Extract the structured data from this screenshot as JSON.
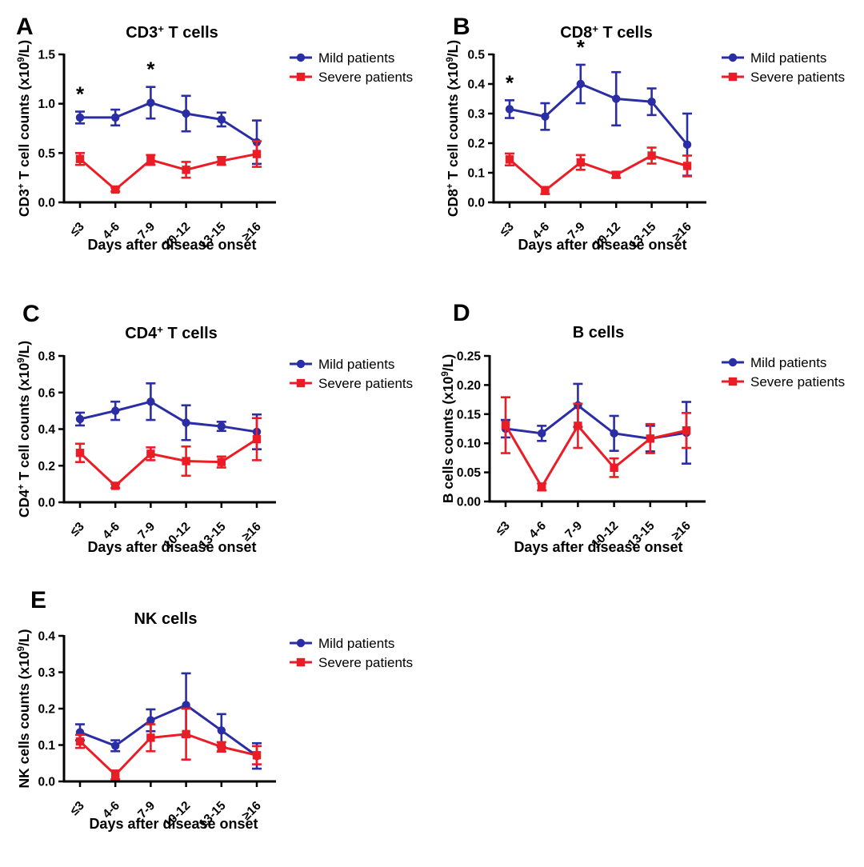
{
  "figure": {
    "legend": {
      "mild": "Mild patients",
      "severe": "Severe patients"
    },
    "xlabel": "Days after disease onset",
    "categories": [
      "≤3",
      "4-6",
      "7-9",
      "10-12",
      "13-15",
      "≥16"
    ],
    "colors": {
      "mild": "#2A2DA4",
      "severe": "#EB1C25",
      "axis": "#000000"
    }
  },
  "chart_data": [
    {
      "id": "A",
      "type": "line",
      "title_parts": [
        {
          "text": "CD3"
        },
        {
          "text": "+",
          "sup": true
        },
        {
          "text": " T cells"
        }
      ],
      "title_plain": "CD3+ T cells",
      "ylabel_parts": [
        {
          "text": "CD3"
        },
        {
          "text": "+",
          "sup": true
        },
        {
          "text": " T cell counts (x10"
        },
        {
          "text": "9",
          "sup": true
        },
        {
          "text": "/L)"
        }
      ],
      "ylabel_plain": "CD3+ T cell counts (x10^9/L)",
      "ylim": [
        0,
        1.5
      ],
      "yticks": [
        "0.0",
        "0.5",
        "1.0",
        "1.5"
      ],
      "series": [
        {
          "name": "Mild patients",
          "values": [
            0.86,
            0.86,
            1.01,
            0.9,
            0.84,
            0.61
          ],
          "errors": [
            0.06,
            0.08,
            0.16,
            0.18,
            0.07,
            0.22
          ]
        },
        {
          "name": "Severe patients",
          "values": [
            0.44,
            0.13,
            0.43,
            0.33,
            0.42,
            0.49
          ],
          "errors": [
            0.06,
            0.02,
            0.05,
            0.08,
            0.04,
            0.13
          ]
        }
      ],
      "annotations": [
        {
          "cat": 0,
          "text": "*"
        },
        {
          "cat": 2,
          "text": "*"
        }
      ]
    },
    {
      "id": "B",
      "type": "line",
      "title_parts": [
        {
          "text": "CD8"
        },
        {
          "text": "+",
          "sup": true
        },
        {
          "text": " T cells"
        }
      ],
      "title_plain": "CD8+ T cells",
      "ylabel_parts": [
        {
          "text": "CD8"
        },
        {
          "text": "+",
          "sup": true
        },
        {
          "text": " T cell counts (x10"
        },
        {
          "text": "9",
          "sup": true
        },
        {
          "text": "/L)"
        }
      ],
      "ylabel_plain": "CD8+ T cell counts (x10^9/L)",
      "ylim": [
        0,
        0.5
      ],
      "yticks": [
        "0.0",
        "0.1",
        "0.2",
        "0.3",
        "0.4",
        "0.5"
      ],
      "series": [
        {
          "name": "Mild patients",
          "values": [
            0.315,
            0.29,
            0.4,
            0.35,
            0.34,
            0.195
          ],
          "errors": [
            0.03,
            0.045,
            0.065,
            0.09,
            0.045,
            0.105
          ]
        },
        {
          "name": "Severe patients",
          "values": [
            0.145,
            0.04,
            0.135,
            0.093,
            0.158,
            0.123
          ],
          "errors": [
            0.02,
            0.012,
            0.025,
            0.01,
            0.027,
            0.035
          ]
        }
      ],
      "annotations": [
        {
          "cat": 0,
          "text": "*"
        },
        {
          "cat": 2,
          "text": "*"
        }
      ]
    },
    {
      "id": "C",
      "type": "line",
      "title_parts": [
        {
          "text": "CD4"
        },
        {
          "text": "+",
          "sup": true
        },
        {
          "text": " T cells"
        }
      ],
      "title_plain": "CD4+ T cells",
      "ylabel_parts": [
        {
          "text": "CD4"
        },
        {
          "text": "+",
          "sup": true
        },
        {
          "text": " T cell counts (x10"
        },
        {
          "text": "9",
          "sup": true
        },
        {
          "text": "/L)"
        }
      ],
      "ylabel_plain": "CD4+ T cell counts (x10^9/L)",
      "ylim": [
        0,
        0.8
      ],
      "yticks": [
        "0.0",
        "0.2",
        "0.4",
        "0.6",
        "0.8"
      ],
      "series": [
        {
          "name": "Mild patients",
          "values": [
            0.455,
            0.5,
            0.55,
            0.435,
            0.415,
            0.385
          ],
          "errors": [
            0.035,
            0.05,
            0.1,
            0.095,
            0.025,
            0.095
          ]
        },
        {
          "name": "Severe patients",
          "values": [
            0.27,
            0.09,
            0.265,
            0.225,
            0.22,
            0.345
          ],
          "errors": [
            0.05,
            0.012,
            0.035,
            0.08,
            0.03,
            0.115
          ]
        }
      ],
      "annotations": []
    },
    {
      "id": "D",
      "type": "line",
      "title_parts": [
        {
          "text": "B cells"
        }
      ],
      "title_plain": "B cells",
      "ylabel_parts": [
        {
          "text": "B cells counts (x10"
        },
        {
          "text": "9",
          "sup": true
        },
        {
          "text": "/L)"
        }
      ],
      "ylabel_plain": "B cells counts (x10^9/L)",
      "ylim": [
        0,
        0.25
      ],
      "yticks": [
        "0.00",
        "0.05",
        "0.10",
        "0.15",
        "0.20",
        "0.25"
      ],
      "series": [
        {
          "name": "Mild patients",
          "values": [
            0.125,
            0.117,
            0.165,
            0.117,
            0.108,
            0.118
          ],
          "errors": [
            0.015,
            0.013,
            0.037,
            0.03,
            0.022,
            0.053
          ]
        },
        {
          "name": "Severe patients",
          "values": [
            0.131,
            0.025,
            0.13,
            0.058,
            0.108,
            0.122
          ],
          "errors": [
            0.048,
            0.006,
            0.038,
            0.016,
            0.025,
            0.03
          ]
        }
      ],
      "annotations": []
    },
    {
      "id": "E",
      "type": "line",
      "title_parts": [
        {
          "text": "NK cells"
        }
      ],
      "title_plain": "NK cells",
      "ylabel_parts": [
        {
          "text": "NK cells counts (x10"
        },
        {
          "text": "9",
          "sup": true
        },
        {
          "text": "/L)"
        }
      ],
      "ylabel_plain": "NK cells counts (x10^9/L)",
      "ylim": [
        0,
        0.4
      ],
      "yticks": [
        "0.0",
        "0.1",
        "0.2",
        "0.3",
        "0.4"
      ],
      "series": [
        {
          "name": "Mild patients",
          "values": [
            0.135,
            0.098,
            0.168,
            0.21,
            0.14,
            0.07
          ],
          "errors": [
            0.022,
            0.015,
            0.03,
            0.087,
            0.045,
            0.035
          ]
        },
        {
          "name": "Severe patients",
          "values": [
            0.11,
            0.018,
            0.12,
            0.13,
            0.095,
            0.072
          ],
          "errors": [
            0.018,
            0.012,
            0.037,
            0.07,
            0.013,
            0.025
          ]
        }
      ],
      "annotations": []
    }
  ]
}
